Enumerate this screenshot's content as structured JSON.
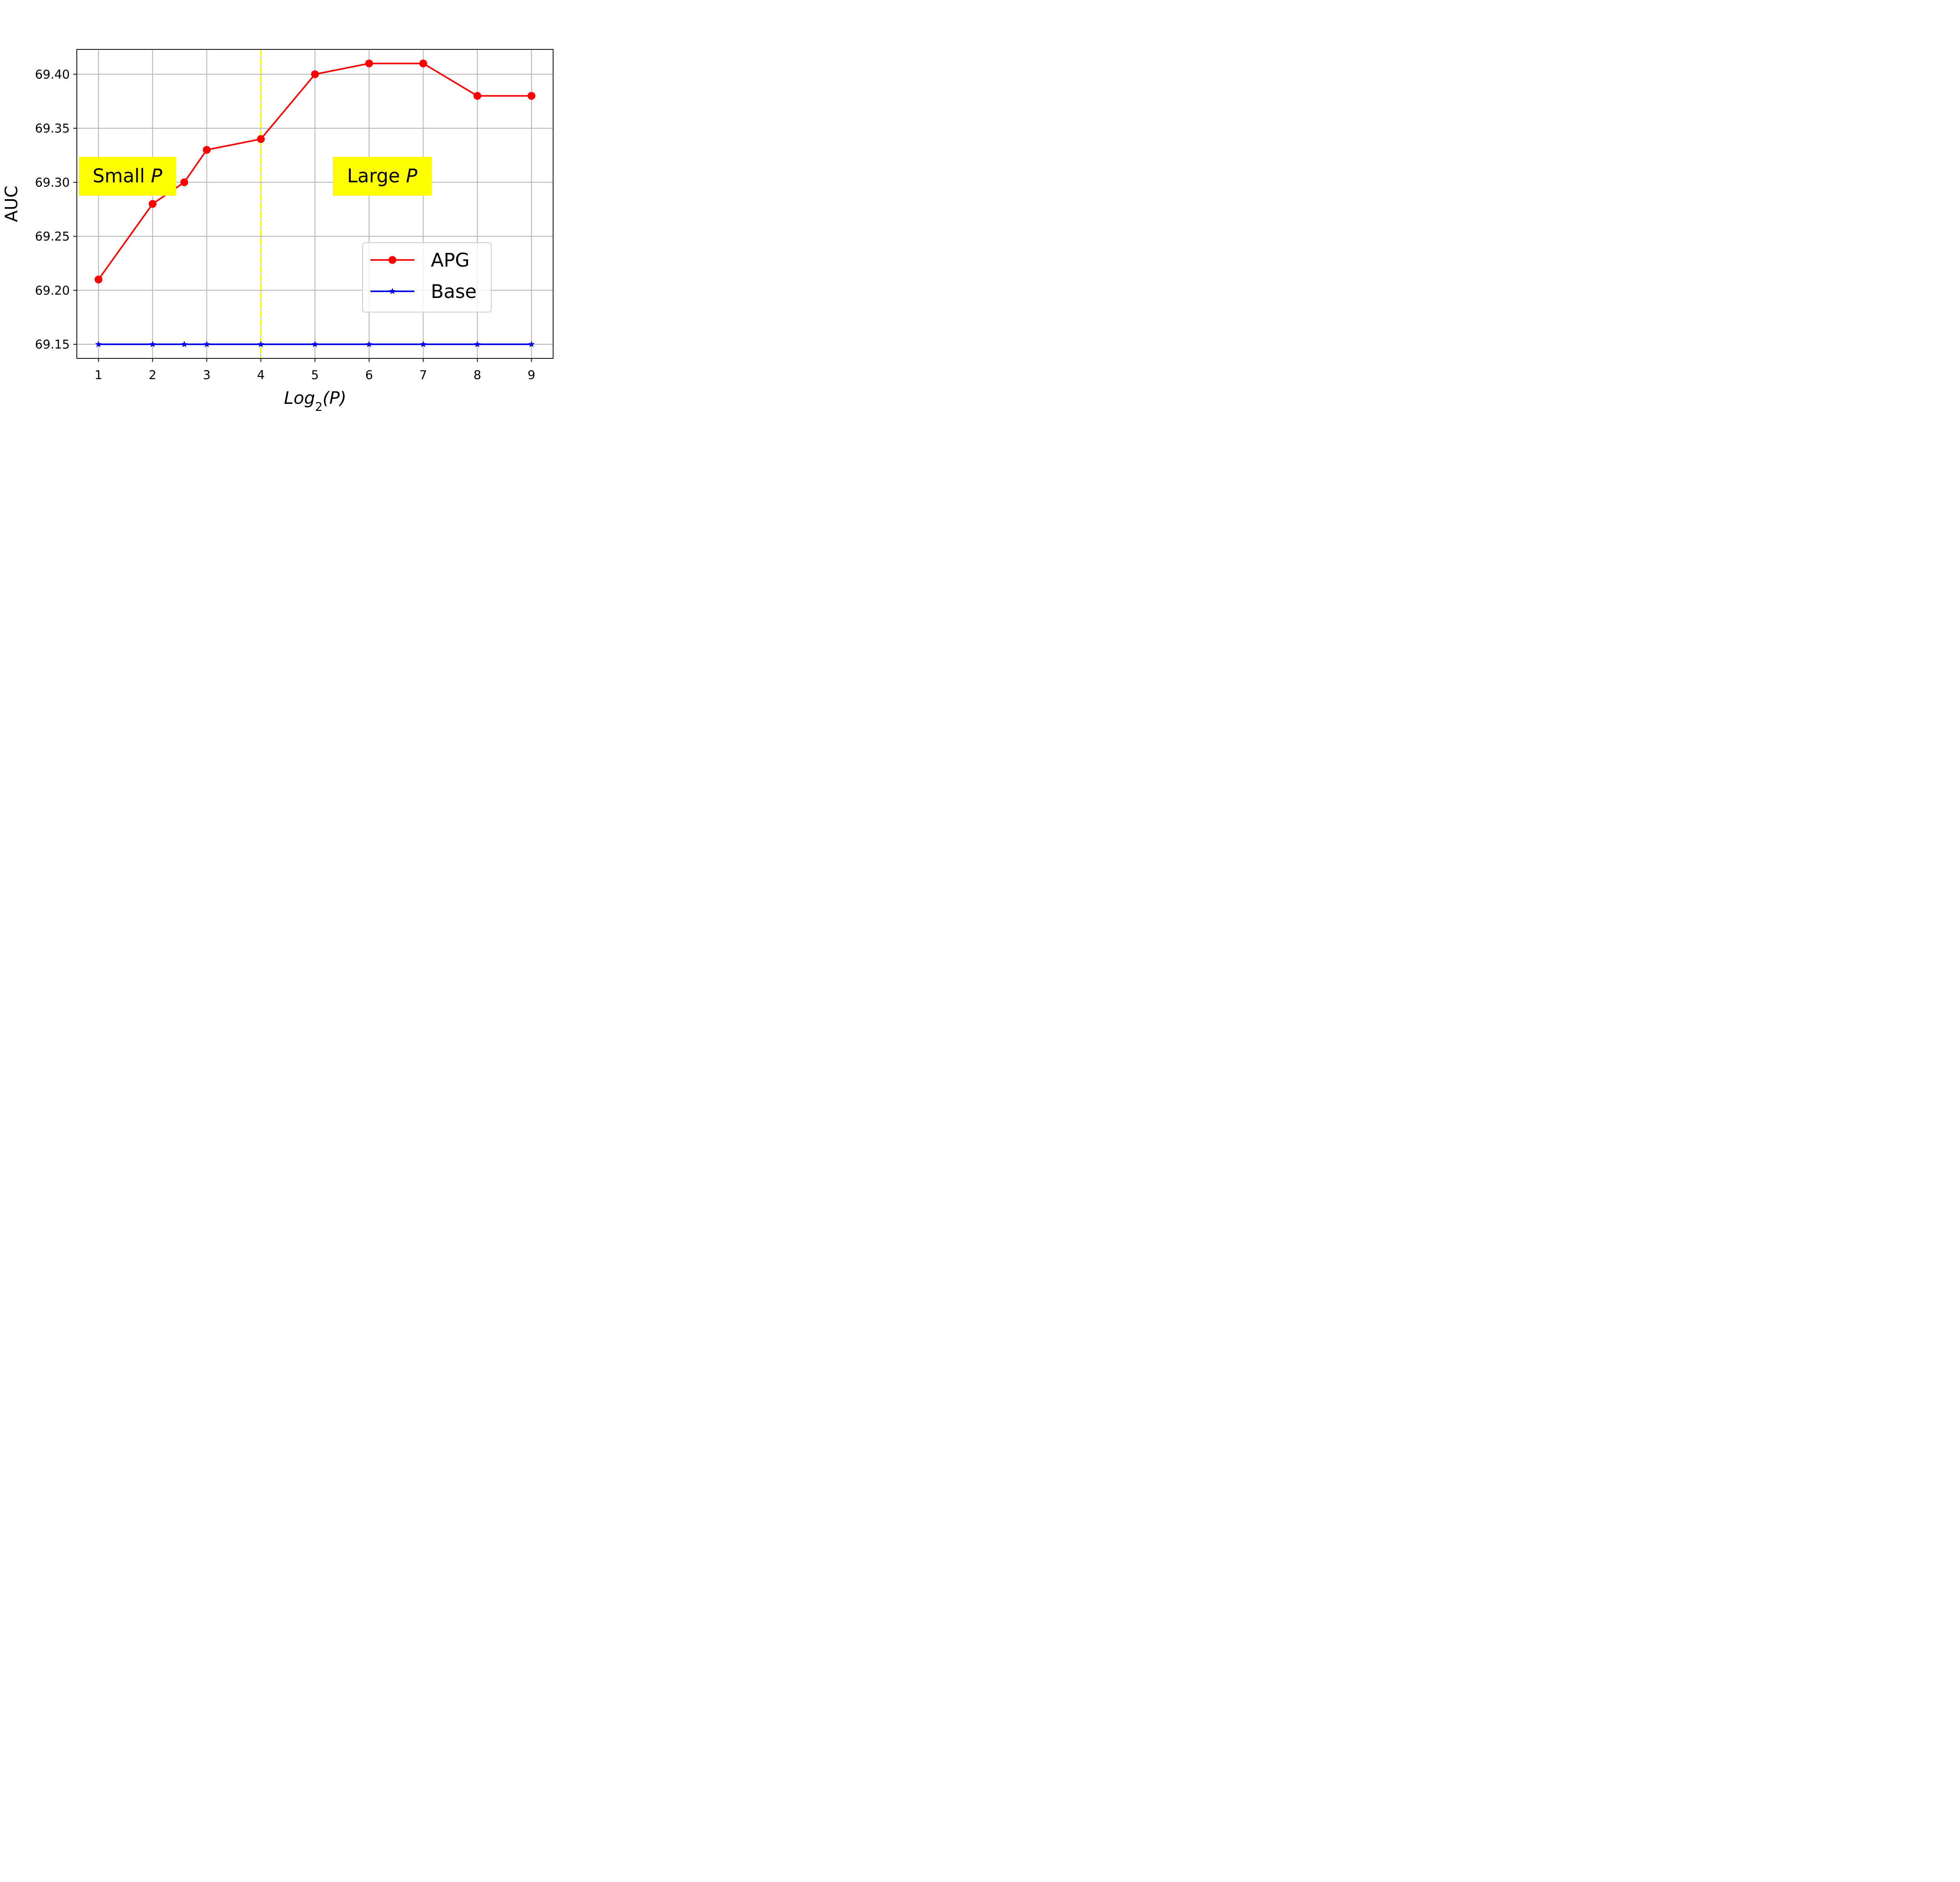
{
  "chart_data": {
    "type": "line",
    "xlabel": {
      "base": "Log",
      "sub": "2",
      "arg": "(P)"
    },
    "ylabel": "AUC",
    "xlim": [
      0.6,
      9.4
    ],
    "ylim": [
      69.137,
      69.423
    ],
    "xticks": [
      1,
      2,
      3,
      4,
      5,
      6,
      7,
      8,
      9
    ],
    "xtick_labels": [
      "1",
      "2",
      "3",
      "4",
      "5",
      "6",
      "7",
      "8",
      "9"
    ],
    "yticks": [
      69.15,
      69.2,
      69.25,
      69.3,
      69.35,
      69.4
    ],
    "ytick_labels": [
      "69.15",
      "69.20",
      "69.25",
      "69.30",
      "69.35",
      "69.40"
    ],
    "grid": true,
    "x": [
      1,
      2,
      2.585,
      3,
      4,
      5,
      6,
      7,
      8,
      9
    ],
    "series": [
      {
        "name": "APG",
        "color": "#ff0000",
        "marker": "circle",
        "values": [
          69.21,
          69.28,
          69.3,
          69.33,
          69.34,
          69.4,
          69.41,
          69.41,
          69.38,
          69.38
        ]
      },
      {
        "name": "Base",
        "color": "#0000ee",
        "marker": "star",
        "values": [
          69.15,
          69.15,
          69.15,
          69.15,
          69.15,
          69.15,
          69.15,
          69.15,
          69.15,
          69.15
        ]
      }
    ],
    "vline": {
      "x": 4,
      "color": "#ffff00",
      "style": "dashed"
    },
    "annotations": [
      {
        "text": "Small ",
        "italic": "P",
        "background": "#ffff00"
      },
      {
        "text": "Large ",
        "italic": "P",
        "background": "#ffff00"
      }
    ],
    "legend": {
      "placement": "lower-right"
    }
  }
}
